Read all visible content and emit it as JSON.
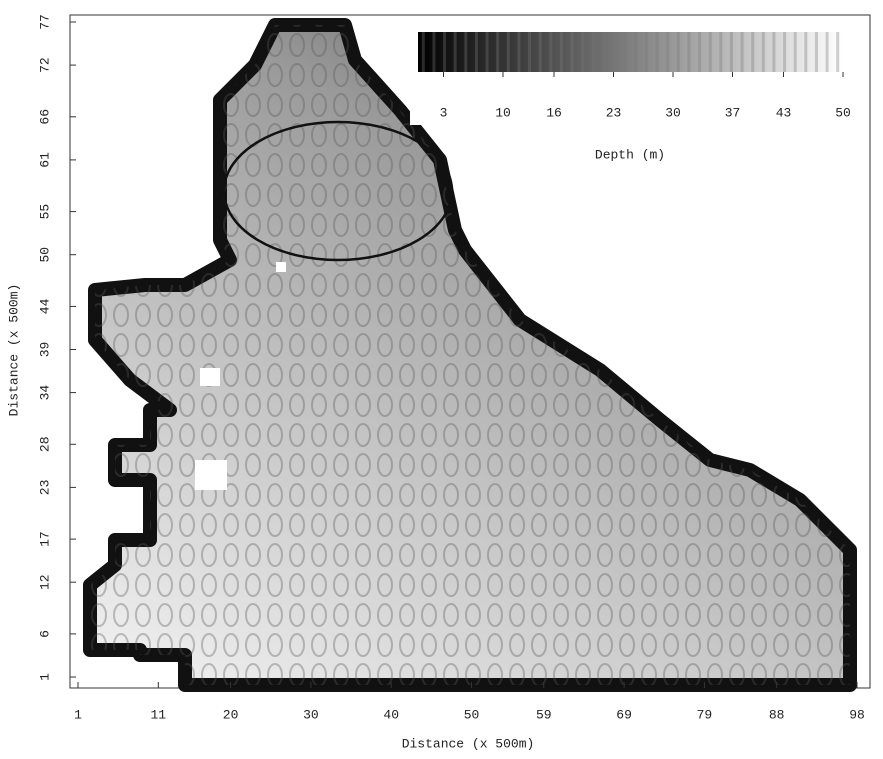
{
  "chart_data": {
    "type": "heatmap",
    "xlabel": "Distance (x 500m)",
    "ylabel": "Distance (x 500m)",
    "xlim": [
      1,
      98
    ],
    "xticks": [
      1,
      11,
      20,
      30,
      40,
      50,
      59,
      69,
      79,
      88,
      98
    ],
    "ylim": [
      1,
      77
    ],
    "yticks": [
      1,
      6,
      12,
      17,
      23,
      28,
      34,
      39,
      44,
      50,
      55,
      61,
      66,
      72,
      77
    ],
    "colorbar": {
      "label": "Depth (m)",
      "lim": [
        0,
        50
      ],
      "ticks": [
        3,
        10,
        16,
        23,
        30,
        37,
        43,
        50
      ],
      "colormap": [
        "#000000",
        "#ffffff"
      ]
    }
  }
}
